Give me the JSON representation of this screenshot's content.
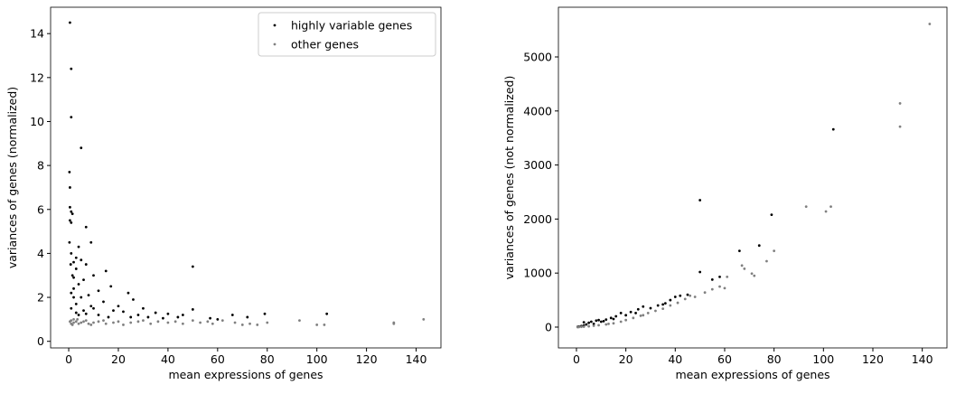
{
  "chart_data": [
    {
      "type": "scatter",
      "xlabel": "mean expressions of genes",
      "ylabel": "variances of genes (normalized)",
      "xlim": [
        -7.3,
        150
      ],
      "ylim": [
        -0.3,
        15.2
      ],
      "xticks": [
        0,
        20,
        40,
        60,
        80,
        100,
        120,
        140
      ],
      "yticks": [
        0,
        2,
        4,
        6,
        8,
        10,
        12,
        14
      ],
      "legend": "upper right",
      "series": [
        {
          "name": "highly variable genes",
          "color": "#000000",
          "x": [
            0.5,
            1,
            1,
            5,
            0.3,
            0.5,
            0.5,
            1,
            1.5,
            0.5,
            1,
            7,
            0.3,
            9,
            4,
            1,
            3,
            5,
            2,
            7,
            50,
            15,
            3,
            10,
            2,
            6,
            17,
            4,
            12,
            24,
            2,
            8,
            26,
            14,
            5,
            20,
            30,
            50,
            3,
            10,
            35,
            40,
            46,
            104,
            79,
            66,
            72,
            57,
            60,
            22,
            28,
            18,
            1,
            2,
            6,
            9,
            12,
            16,
            25,
            32,
            38,
            44,
            1,
            3,
            4,
            7,
            1.5,
            0.8
          ],
          "values": [
            14.5,
            12.4,
            10.2,
            8.8,
            7.7,
            7.0,
            6.1,
            5.9,
            5.8,
            5.5,
            5.4,
            5.2,
            4.5,
            4.5,
            4.3,
            4.0,
            3.8,
            3.7,
            3.6,
            3.5,
            3.4,
            3.2,
            3.3,
            3.0,
            2.9,
            2.8,
            2.5,
            2.6,
            2.3,
            2.2,
            2.4,
            2.1,
            1.9,
            1.8,
            2.0,
            1.6,
            1.5,
            1.45,
            1.7,
            1.5,
            1.3,
            1.25,
            1.2,
            1.25,
            1.25,
            1.2,
            1.1,
            1.05,
            1.0,
            1.35,
            1.2,
            1.4,
            1.5,
            2.0,
            1.4,
            1.6,
            1.2,
            1.1,
            1.1,
            1.1,
            1.05,
            1.1,
            2.2,
            1.3,
            1.2,
            1.25,
            3.0,
            3.5
          ]
        },
        {
          "name": "other genes",
          "color": "#808080",
          "x": [
            0.5,
            1,
            2,
            3,
            4,
            5,
            6,
            8,
            10,
            12,
            15,
            18,
            20,
            22,
            25,
            28,
            30,
            33,
            36,
            40,
            43,
            46,
            50,
            53,
            56,
            58,
            62,
            67,
            70,
            73,
            76,
            80,
            93,
            100,
            103,
            131,
            131,
            143,
            1,
            2,
            7,
            9,
            14,
            1.5,
            3.5
          ],
          "values": [
            0.9,
            0.95,
            0.85,
            0.9,
            0.8,
            0.85,
            0.9,
            0.8,
            0.85,
            0.9,
            0.8,
            0.85,
            0.9,
            0.75,
            0.85,
            0.9,
            0.95,
            0.8,
            0.9,
            0.85,
            0.9,
            0.8,
            0.95,
            0.85,
            0.9,
            0.8,
            0.95,
            0.85,
            0.75,
            0.8,
            0.75,
            0.85,
            0.95,
            0.75,
            0.75,
            0.85,
            0.8,
            1.0,
            0.8,
            1.0,
            0.95,
            0.75,
            0.95,
            0.75,
            1.0
          ]
        }
      ]
    },
    {
      "type": "scatter",
      "xlabel": "mean expressions of genes",
      "ylabel": "variances of genes (not normalized)",
      "xlim": [
        -7.3,
        150
      ],
      "ylim": [
        -385,
        5920
      ],
      "xticks": [
        0,
        20,
        40,
        60,
        80,
        100,
        120,
        140
      ],
      "yticks": [
        0,
        1000,
        2000,
        3000,
        4000,
        5000
      ],
      "series": [
        {
          "name": "highly variable genes",
          "color": "#000000",
          "x": [
            0.5,
            1,
            2,
            3,
            4,
            5,
            6,
            7,
            8,
            10,
            12,
            14,
            16,
            18,
            20,
            22,
            25,
            27,
            30,
            33,
            35,
            38,
            40,
            42,
            45,
            50,
            50,
            55,
            58,
            66,
            74,
            79,
            104,
            3,
            9,
            11,
            15,
            24,
            36
          ],
          "values": [
            5,
            10,
            20,
            30,
            50,
            80,
            100,
            60,
            120,
            100,
            140,
            170,
            200,
            260,
            220,
            280,
            330,
            380,
            350,
            400,
            420,
            500,
            560,
            580,
            600,
            1020,
            2350,
            880,
            930,
            1410,
            1510,
            2080,
            3660,
            90,
            130,
            110,
            150,
            260,
            440
          ]
        },
        {
          "name": "other genes",
          "color": "#808080",
          "x": [
            0.5,
            1,
            2,
            3,
            5,
            7,
            9,
            12,
            15,
            18,
            20,
            23,
            26,
            29,
            32,
            35,
            38,
            41,
            44,
            48,
            52,
            55,
            58,
            61,
            67,
            68,
            71,
            72,
            77,
            80,
            93,
            101,
            103,
            131,
            131,
            143,
            60,
            46,
            27,
            13
          ],
          "values": [
            0,
            2,
            5,
            8,
            15,
            25,
            35,
            50,
            70,
            100,
            130,
            170,
            210,
            260,
            300,
            340,
            400,
            450,
            520,
            560,
            640,
            700,
            750,
            930,
            1140,
            1080,
            990,
            950,
            1220,
            1410,
            2230,
            2140,
            2230,
            4140,
            3710,
            5610,
            720,
            580,
            220,
            60
          ]
        }
      ]
    }
  ]
}
